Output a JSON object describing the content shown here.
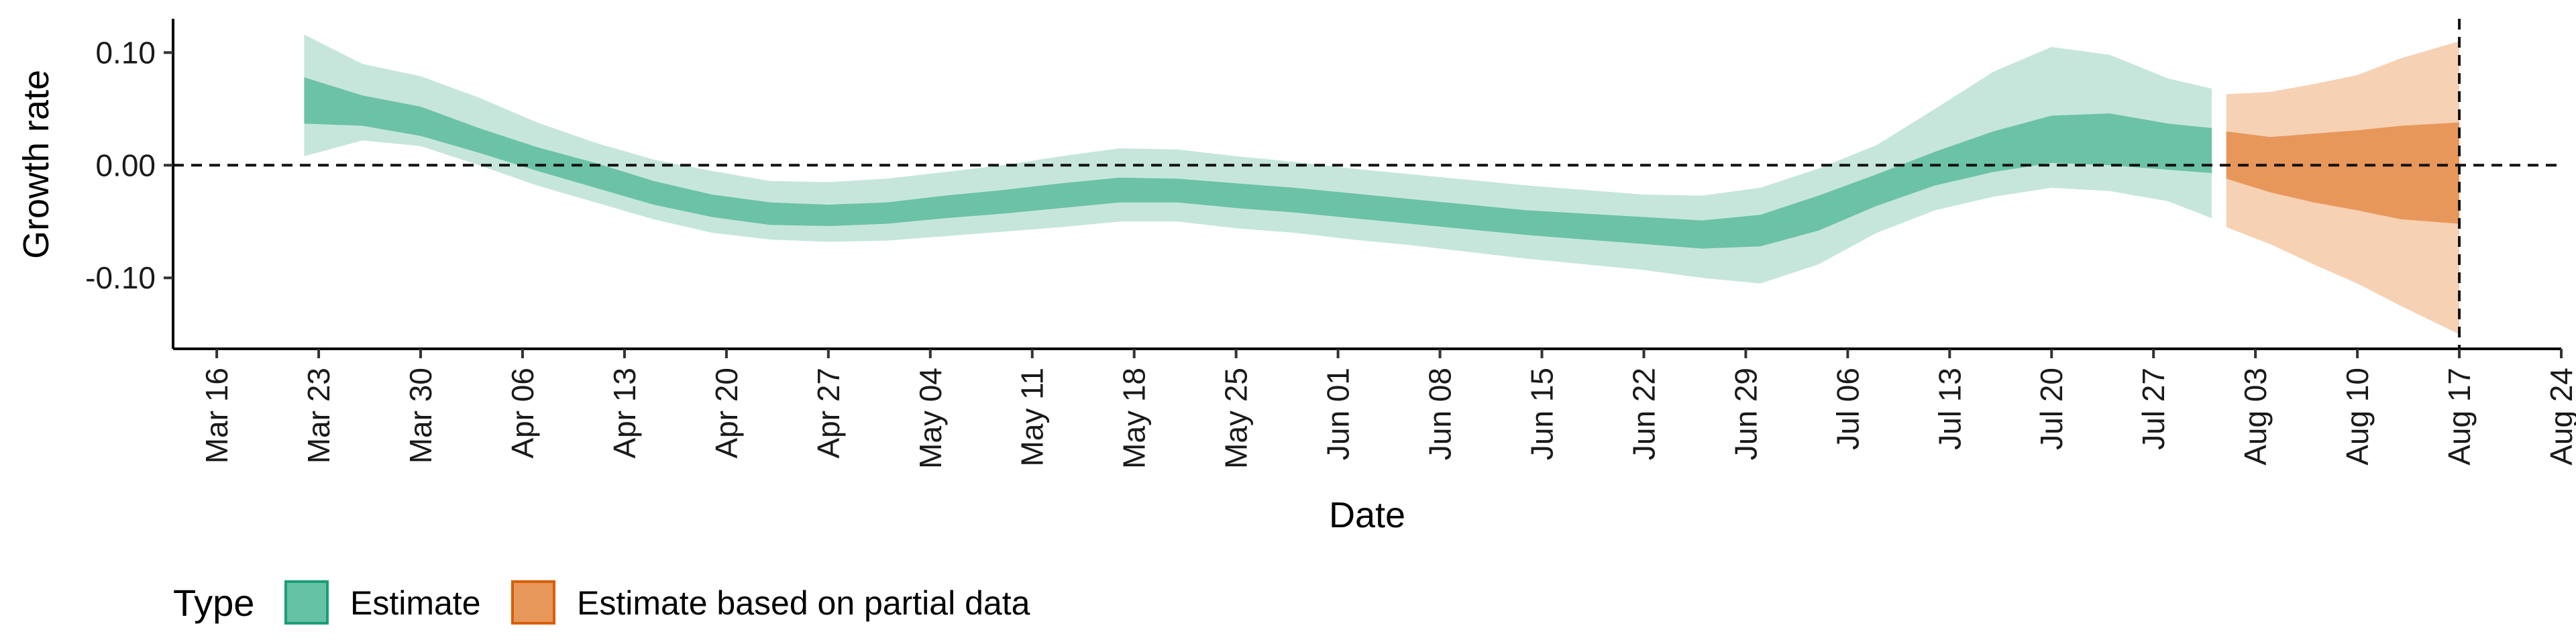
{
  "chart_data": {
    "type": "area",
    "xlabel": "Date",
    "ylabel": "Growth rate",
    "ylim": [
      -0.163,
      0.13
    ],
    "y_ticks": [
      {
        "value": 0.1,
        "label": "0.10"
      },
      {
        "value": 0.0,
        "label": "0.00"
      },
      {
        "value": -0.1,
        "label": "-0.10"
      }
    ],
    "x_range": [
      "2020-03-13",
      "2020-08-24"
    ],
    "x_ticks": [
      {
        "date": "2020-03-16",
        "label": "Mar 16"
      },
      {
        "date": "2020-03-23",
        "label": "Mar 23"
      },
      {
        "date": "2020-03-30",
        "label": "Mar 30"
      },
      {
        "date": "2020-04-06",
        "label": "Apr 06"
      },
      {
        "date": "2020-04-13",
        "label": "Apr 13"
      },
      {
        "date": "2020-04-20",
        "label": "Apr 20"
      },
      {
        "date": "2020-04-27",
        "label": "Apr 27"
      },
      {
        "date": "2020-05-04",
        "label": "May 04"
      },
      {
        "date": "2020-05-11",
        "label": "May 11"
      },
      {
        "date": "2020-05-18",
        "label": "May 18"
      },
      {
        "date": "2020-05-25",
        "label": "May 25"
      },
      {
        "date": "2020-06-01",
        "label": "Jun 01"
      },
      {
        "date": "2020-06-08",
        "label": "Jun 08"
      },
      {
        "date": "2020-06-15",
        "label": "Jun 15"
      },
      {
        "date": "2020-06-22",
        "label": "Jun 22"
      },
      {
        "date": "2020-06-29",
        "label": "Jun 29"
      },
      {
        "date": "2020-07-06",
        "label": "Jul 06"
      },
      {
        "date": "2020-07-13",
        "label": "Jul 13"
      },
      {
        "date": "2020-07-20",
        "label": "Jul 20"
      },
      {
        "date": "2020-07-27",
        "label": "Jul 27"
      },
      {
        "date": "2020-08-03",
        "label": "Aug 03"
      },
      {
        "date": "2020-08-10",
        "label": "Aug 10"
      },
      {
        "date": "2020-08-17",
        "label": "Aug 17"
      },
      {
        "date": "2020-08-24",
        "label": "Aug 24"
      }
    ],
    "reference_lines": [
      {
        "type": "horizontal",
        "y": 0.0,
        "style": "dashed"
      },
      {
        "type": "vertical",
        "x": "2020-08-17",
        "style": "dashed"
      }
    ],
    "grid": false,
    "legend": {
      "title": "Type",
      "position": "bottom-left",
      "entries": [
        {
          "label": "Estimate",
          "fill": "#66c2a5",
          "border": "#1b9e77"
        },
        {
          "label": "Estimate based on partial data",
          "fill": "#e8975b",
          "border": "#d95f02"
        }
      ]
    },
    "series": [
      {
        "name": "Estimate",
        "color": "#1b9e77",
        "outer_color": "#c6e6dc",
        "inner_color": "#6cc2a6",
        "points": [
          {
            "date": "2020-03-22",
            "outer": [
              0.008,
              0.116
            ],
            "inner": [
              0.037,
              0.078
            ]
          },
          {
            "date": "2020-03-26",
            "outer": [
              0.022,
              0.09
            ],
            "inner": [
              0.035,
              0.062
            ]
          },
          {
            "date": "2020-03-30",
            "outer": [
              0.017,
              0.079
            ],
            "inner": [
              0.026,
              0.052
            ]
          },
          {
            "date": "2020-04-03",
            "outer": [
              0.0,
              0.06
            ],
            "inner": [
              0.011,
              0.033
            ]
          },
          {
            "date": "2020-04-07",
            "outer": [
              -0.018,
              0.038
            ],
            "inner": [
              -0.005,
              0.016
            ]
          },
          {
            "date": "2020-04-11",
            "outer": [
              -0.033,
              0.02
            ],
            "inner": [
              -0.02,
              0.002
            ]
          },
          {
            "date": "2020-04-15",
            "outer": [
              -0.048,
              0.005
            ],
            "inner": [
              -0.035,
              -0.014
            ]
          },
          {
            "date": "2020-04-19",
            "outer": [
              -0.06,
              -0.005
            ],
            "inner": [
              -0.046,
              -0.026
            ]
          },
          {
            "date": "2020-04-23",
            "outer": [
              -0.066,
              -0.014
            ],
            "inner": [
              -0.053,
              -0.033
            ]
          },
          {
            "date": "2020-04-27",
            "outer": [
              -0.068,
              -0.015
            ],
            "inner": [
              -0.054,
              -0.035
            ]
          },
          {
            "date": "2020-05-01",
            "outer": [
              -0.067,
              -0.012
            ],
            "inner": [
              -0.052,
              -0.033
            ]
          },
          {
            "date": "2020-05-05",
            "outer": [
              -0.063,
              -0.006
            ],
            "inner": [
              -0.047,
              -0.027
            ]
          },
          {
            "date": "2020-05-09",
            "outer": [
              -0.059,
              0.0
            ],
            "inner": [
              -0.043,
              -0.022
            ]
          },
          {
            "date": "2020-05-13",
            "outer": [
              -0.055,
              0.008
            ],
            "inner": [
              -0.038,
              -0.016
            ]
          },
          {
            "date": "2020-05-17",
            "outer": [
              -0.05,
              0.015
            ],
            "inner": [
              -0.033,
              -0.011
            ]
          },
          {
            "date": "2020-05-21",
            "outer": [
              -0.05,
              0.014
            ],
            "inner": [
              -0.033,
              -0.012
            ]
          },
          {
            "date": "2020-05-25",
            "outer": [
              -0.056,
              0.008
            ],
            "inner": [
              -0.038,
              -0.016
            ]
          },
          {
            "date": "2020-05-29",
            "outer": [
              -0.06,
              0.003
            ],
            "inner": [
              -0.042,
              -0.02
            ]
          },
          {
            "date": "2020-06-02",
            "outer": [
              -0.066,
              -0.003
            ],
            "inner": [
              -0.047,
              -0.025
            ]
          },
          {
            "date": "2020-06-06",
            "outer": [
              -0.071,
              -0.008
            ],
            "inner": [
              -0.052,
              -0.03
            ]
          },
          {
            "date": "2020-06-10",
            "outer": [
              -0.077,
              -0.013
            ],
            "inner": [
              -0.057,
              -0.035
            ]
          },
          {
            "date": "2020-06-14",
            "outer": [
              -0.083,
              -0.018
            ],
            "inner": [
              -0.062,
              -0.04
            ]
          },
          {
            "date": "2020-06-18",
            "outer": [
              -0.088,
              -0.022
            ],
            "inner": [
              -0.066,
              -0.043
            ]
          },
          {
            "date": "2020-06-22",
            "outer": [
              -0.093,
              -0.026
            ],
            "inner": [
              -0.07,
              -0.046
            ]
          },
          {
            "date": "2020-06-26",
            "outer": [
              -0.1,
              -0.027
            ],
            "inner": [
              -0.074,
              -0.049
            ]
          },
          {
            "date": "2020-06-30",
            "outer": [
              -0.105,
              -0.02
            ],
            "inner": [
              -0.072,
              -0.044
            ]
          },
          {
            "date": "2020-07-04",
            "outer": [
              -0.088,
              -0.003
            ],
            "inner": [
              -0.058,
              -0.027
            ]
          },
          {
            "date": "2020-07-08",
            "outer": [
              -0.06,
              0.018
            ],
            "inner": [
              -0.036,
              -0.008
            ]
          },
          {
            "date": "2020-07-12",
            "outer": [
              -0.04,
              0.05
            ],
            "inner": [
              -0.018,
              0.012
            ]
          },
          {
            "date": "2020-07-16",
            "outer": [
              -0.028,
              0.083
            ],
            "inner": [
              -0.006,
              0.03
            ]
          },
          {
            "date": "2020-07-20",
            "outer": [
              -0.02,
              0.105
            ],
            "inner": [
              0.002,
              0.044
            ]
          },
          {
            "date": "2020-07-24",
            "outer": [
              -0.023,
              0.098
            ],
            "inner": [
              0.0,
              0.046
            ]
          },
          {
            "date": "2020-07-28",
            "outer": [
              -0.032,
              0.077
            ],
            "inner": [
              -0.004,
              0.037
            ]
          },
          {
            "date": "2020-07-31",
            "outer": [
              -0.047,
              0.068
            ],
            "inner": [
              -0.007,
              0.033
            ]
          }
        ]
      },
      {
        "name": "Estimate based on partial data",
        "color": "#d95f02",
        "outer_color": "#f6d1b3",
        "inner_color": "#e8975b",
        "points": [
          {
            "date": "2020-08-01",
            "outer": [
              -0.055,
              0.063
            ],
            "inner": [
              -0.012,
              0.03
            ]
          },
          {
            "date": "2020-08-04",
            "outer": [
              -0.07,
              0.065
            ],
            "inner": [
              -0.024,
              0.025
            ]
          },
          {
            "date": "2020-08-07",
            "outer": [
              -0.088,
              0.072
            ],
            "inner": [
              -0.033,
              0.028
            ]
          },
          {
            "date": "2020-08-10",
            "outer": [
              -0.105,
              0.08
            ],
            "inner": [
              -0.04,
              0.031
            ]
          },
          {
            "date": "2020-08-13",
            "outer": [
              -0.125,
              0.095
            ],
            "inner": [
              -0.048,
              0.035
            ]
          },
          {
            "date": "2020-08-17",
            "outer": [
              -0.15,
              0.11
            ],
            "inner": [
              -0.052,
              0.038
            ]
          }
        ]
      }
    ]
  }
}
